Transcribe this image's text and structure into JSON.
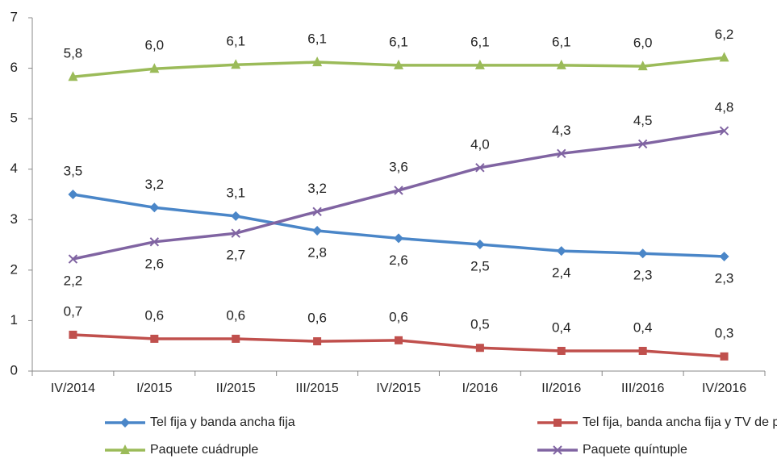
{
  "chart_data": {
    "type": "line",
    "categories": [
      "IV/2014",
      "I/2015",
      "II/2015",
      "III/2015",
      "IV/2015",
      "I/2016",
      "II/2016",
      "III/2016",
      "IV/2016"
    ],
    "ylim": [
      0,
      7
    ],
    "yticks": [
      0,
      1,
      2,
      3,
      4,
      5,
      6,
      7
    ],
    "series": [
      {
        "name": "Tel fija y banda ancha fija",
        "color": "#4a86c8",
        "marker": "diamond",
        "values": [
          3.5,
          3.24,
          3.07,
          2.78,
          2.63,
          2.51,
          2.38,
          2.33,
          2.27
        ],
        "value_labels": [
          "3,5",
          "3,2",
          "3,1",
          "2,8",
          "2,6",
          "2,5",
          "2,4",
          "2,3",
          "2,3"
        ]
      },
      {
        "name": "Tel fija, banda ancha fija y TV de pago",
        "color": "#c0504d",
        "marker": "square",
        "values": [
          0.72,
          0.64,
          0.64,
          0.59,
          0.61,
          0.46,
          0.4,
          0.4,
          0.29
        ],
        "value_labels": [
          "0,7",
          "0,6",
          "0,6",
          "0,6",
          "0,6",
          "0,5",
          "0,4",
          "0,4",
          "0,3"
        ]
      },
      {
        "name": "Paquete cuádruple",
        "color": "#9bbb59",
        "marker": "triangle",
        "values": [
          5.83,
          5.99,
          6.07,
          6.12,
          6.06,
          6.06,
          6.06,
          6.04,
          6.21
        ],
        "value_labels": [
          "5,8",
          "6,0",
          "6,1",
          "6,1",
          "6,1",
          "6,1",
          "6,1",
          "6,0",
          "6,2"
        ]
      },
      {
        "name": "Paquete quíntuple",
        "color": "#8064a2",
        "marker": "x",
        "values": [
          2.22,
          2.56,
          2.73,
          3.16,
          3.58,
          4.03,
          4.31,
          4.5,
          4.76
        ],
        "value_labels": [
          "2,2",
          "2,6",
          "2,7",
          "3,2",
          "3,6",
          "4,0",
          "4,3",
          "4,5",
          "4,8"
        ]
      }
    ]
  }
}
